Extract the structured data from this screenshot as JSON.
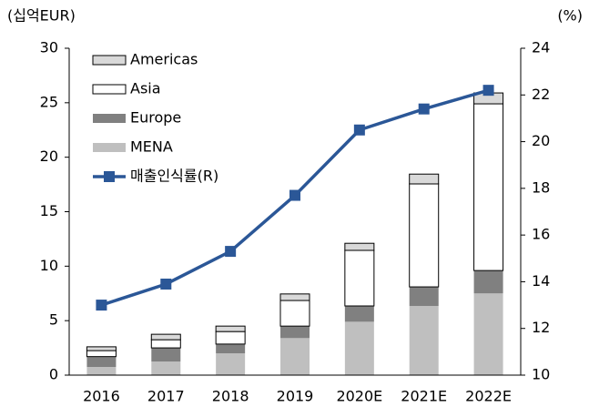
{
  "chart_data": {
    "type": "bar+line",
    "y_label": "(십억EUR)",
    "y2_label": "(%)",
    "categories": [
      "2016",
      "2017",
      "2018",
      "2019",
      "2020E",
      "2021E",
      "2022E"
    ],
    "series": [
      {
        "name": "MENA",
        "color": "#bfbfbf",
        "values": [
          0.75,
          1.25,
          2.0,
          3.4,
          4.9,
          6.35,
          7.5
        ]
      },
      {
        "name": "Europe",
        "color": "#808080",
        "values": [
          0.95,
          1.25,
          0.85,
          1.1,
          1.45,
          1.75,
          2.1
        ]
      },
      {
        "name": "Asia",
        "color": "#ffffff",
        "values": [
          0.55,
          0.75,
          1.15,
          2.35,
          5.1,
          9.45,
          15.3
        ]
      },
      {
        "name": "Americas",
        "color": "#d9d9d9",
        "values": [
          0.35,
          0.5,
          0.5,
          0.6,
          0.65,
          0.9,
          1.0
        ]
      },
      {
        "name": "매출인식률(R)",
        "color": "#2b5797",
        "axis": "y2",
        "values": [
          13.0,
          13.9,
          15.3,
          17.7,
          20.5,
          21.4,
          22.2
        ]
      }
    ],
    "ylim": [
      0,
      30
    ],
    "yticks": [
      0,
      5,
      10,
      15,
      20,
      25,
      30
    ],
    "y2lim": [
      10,
      24
    ],
    "y2ticks": [
      10,
      12,
      14,
      16,
      18,
      20,
      22,
      24
    ]
  }
}
